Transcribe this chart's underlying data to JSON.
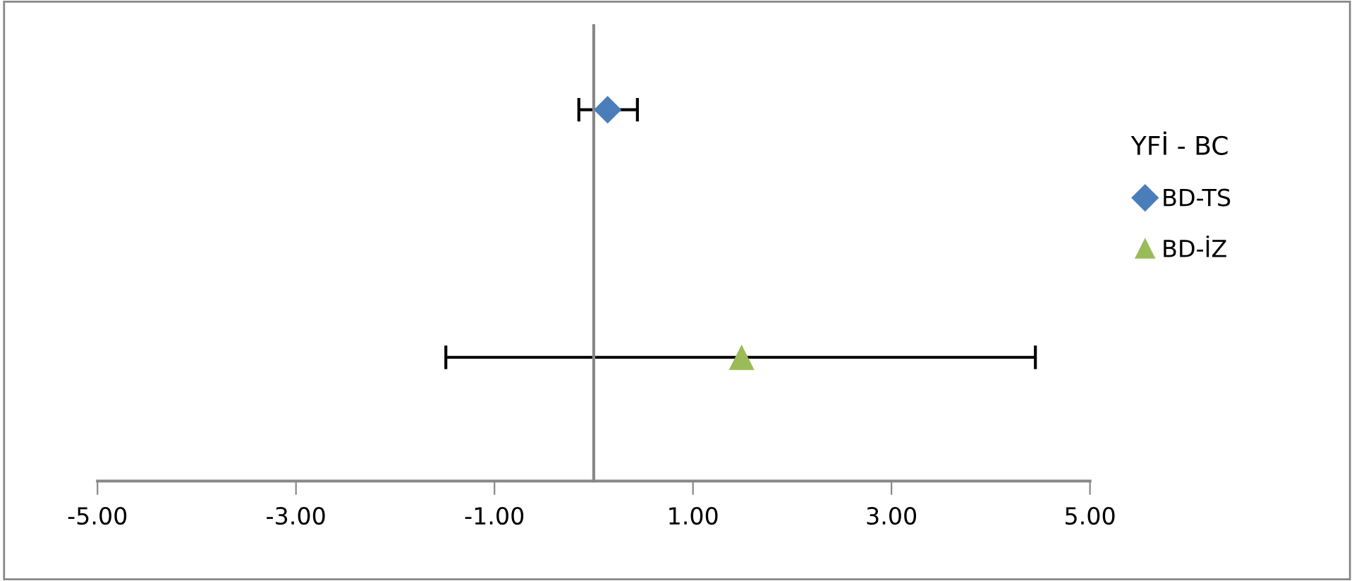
{
  "chart_data": {
    "type": "scatter",
    "orientation": "horizontal",
    "legend_title": "YFİ - BC",
    "legend": "right",
    "tick_labels": "x",
    "categories": [
      null,
      null
    ],
    "xlim": [
      -5,
      5
    ],
    "xticks": [
      {
        "value": -5,
        "label": "-5.00"
      },
      {
        "value": -3,
        "label": "-3.00"
      },
      {
        "value": -1,
        "label": "-1.00"
      },
      {
        "value": 1,
        "label": "1.00"
      },
      {
        "value": 3,
        "label": "3.00"
      },
      {
        "value": 5,
        "label": "5.00"
      }
    ],
    "series": [
      {
        "name": "BD-TS",
        "color": "#4a7ebb",
        "marker": "diamond",
        "values": [
          0.14,
          null
        ],
        "errors": [
          [
            -0.15,
            0.44
          ],
          null
        ]
      },
      {
        "name": "BD-İZ",
        "color": "#9bbb59",
        "marker": "triangle",
        "values": [
          null,
          1.49
        ],
        "errors": [
          null,
          [
            -1.49,
            4.45
          ]
        ]
      }
    ]
  }
}
